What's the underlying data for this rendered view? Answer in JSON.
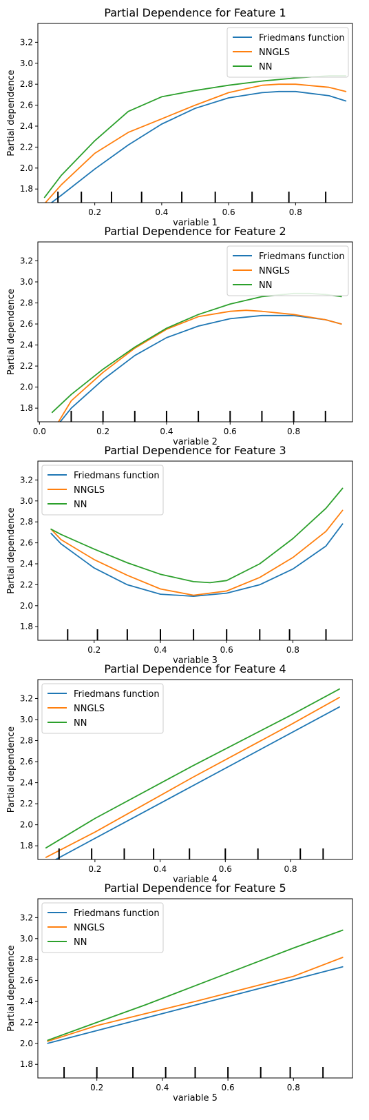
{
  "figure": {
    "background": "#ffffff",
    "axis_color": "#000000"
  },
  "colors": {
    "friedman": "#1f77b4",
    "nngls": "#ff7f0e",
    "nn": "#2ca02c"
  },
  "chart_data": [
    {
      "type": "line",
      "title": "Partial Dependence for Feature 1",
      "xlabel": "variable 1",
      "ylabel": "Partial dependence",
      "xlim": [
        0.03,
        0.97
      ],
      "ylim": [
        1.67,
        3.38
      ],
      "xticks": [
        0.2,
        0.4,
        0.6,
        0.8
      ],
      "xtick_labels": [
        "0.2",
        "0.4",
        "0.6",
        "0.8"
      ],
      "yticks": [
        1.8,
        2.0,
        2.2,
        2.4,
        2.6,
        2.8,
        3.0,
        3.2
      ],
      "ytick_labels": [
        "1.8",
        "2.0",
        "2.2",
        "2.4",
        "2.6",
        "2.8",
        "3.0",
        "3.2"
      ],
      "legend": {
        "position": "top-right",
        "entries": [
          "Friedmans function",
          "NNGLS",
          "NN"
        ]
      },
      "grid": false,
      "deciles": [
        0.09,
        0.16,
        0.25,
        0.34,
        0.46,
        0.56,
        0.67,
        0.78,
        0.89
      ],
      "series": [
        {
          "name": "Friedmans function",
          "color": "#1f77b4",
          "x": [
            0.05,
            0.1,
            0.2,
            0.3,
            0.4,
            0.5,
            0.6,
            0.7,
            0.75,
            0.8,
            0.9,
            0.95
          ],
          "y": [
            1.62,
            1.74,
            1.99,
            2.22,
            2.42,
            2.57,
            2.67,
            2.72,
            2.73,
            2.73,
            2.69,
            2.64
          ]
        },
        {
          "name": "NNGLS",
          "color": "#ff7f0e",
          "x": [
            0.05,
            0.1,
            0.2,
            0.3,
            0.4,
            0.5,
            0.6,
            0.7,
            0.75,
            0.8,
            0.9,
            0.95
          ],
          "y": [
            1.66,
            1.84,
            2.14,
            2.34,
            2.47,
            2.6,
            2.72,
            2.79,
            2.8,
            2.8,
            2.77,
            2.73
          ]
        },
        {
          "name": "NN",
          "color": "#2ca02c",
          "x": [
            0.05,
            0.1,
            0.2,
            0.3,
            0.4,
            0.5,
            0.6,
            0.7,
            0.8,
            0.9,
            0.95
          ],
          "y": [
            1.72,
            1.93,
            2.26,
            2.54,
            2.68,
            2.74,
            2.79,
            2.83,
            2.86,
            2.88,
            2.88
          ]
        }
      ]
    },
    {
      "type": "line",
      "title": "Partial Dependence for Feature 2",
      "xlabel": "variable 2",
      "ylabel": "Partial dependence",
      "xlim": [
        -0.005,
        0.985
      ],
      "ylim": [
        1.67,
        3.38
      ],
      "xticks": [
        0.0,
        0.2,
        0.4,
        0.6,
        0.8
      ],
      "xtick_labels": [
        "0.0",
        "0.2",
        "0.4",
        "0.6",
        "0.8"
      ],
      "yticks": [
        1.8,
        2.0,
        2.2,
        2.4,
        2.6,
        2.8,
        3.0,
        3.2
      ],
      "ytick_labels": [
        "1.8",
        "2.0",
        "2.2",
        "2.4",
        "2.6",
        "2.8",
        "3.0",
        "3.2"
      ],
      "legend": {
        "position": "top-right",
        "entries": [
          "Friedmans function",
          "NNGLS",
          "NN"
        ]
      },
      "grid": false,
      "deciles": [
        0.1,
        0.2,
        0.3,
        0.4,
        0.5,
        0.6,
        0.7,
        0.8,
        0.9
      ],
      "series": [
        {
          "name": "Friedmans function",
          "color": "#1f77b4",
          "x": [
            0.06,
            0.1,
            0.2,
            0.3,
            0.4,
            0.5,
            0.6,
            0.7,
            0.75,
            0.8,
            0.9,
            0.95
          ],
          "y": [
            1.65,
            1.8,
            2.07,
            2.3,
            2.47,
            2.58,
            2.65,
            2.68,
            2.68,
            2.68,
            2.64,
            2.6
          ]
        },
        {
          "name": "NNGLS",
          "color": "#ff7f0e",
          "x": [
            0.05,
            0.1,
            0.2,
            0.3,
            0.4,
            0.5,
            0.6,
            0.65,
            0.7,
            0.8,
            0.9,
            0.95
          ],
          "y": [
            1.62,
            1.87,
            2.14,
            2.37,
            2.55,
            2.67,
            2.72,
            2.73,
            2.72,
            2.69,
            2.64,
            2.6
          ]
        },
        {
          "name": "NN",
          "color": "#2ca02c",
          "x": [
            0.04,
            0.1,
            0.2,
            0.3,
            0.4,
            0.5,
            0.6,
            0.7,
            0.8,
            0.85,
            0.9,
            0.95
          ],
          "y": [
            1.76,
            1.93,
            2.17,
            2.38,
            2.56,
            2.69,
            2.79,
            2.86,
            2.89,
            2.89,
            2.88,
            2.86
          ]
        }
      ]
    },
    {
      "type": "line",
      "title": "Partial Dependence for Feature 3",
      "xlabel": "variable 3",
      "ylabel": "Partial dependence",
      "xlim": [
        0.03,
        0.98
      ],
      "ylim": [
        1.67,
        3.38
      ],
      "xticks": [
        0.2,
        0.4,
        0.6,
        0.8
      ],
      "xtick_labels": [
        "0.2",
        "0.4",
        "0.6",
        "0.8"
      ],
      "yticks": [
        1.8,
        2.0,
        2.2,
        2.4,
        2.6,
        2.8,
        3.0,
        3.2
      ],
      "ytick_labels": [
        "1.8",
        "2.0",
        "2.2",
        "2.4",
        "2.6",
        "2.8",
        "3.0",
        "3.2"
      ],
      "legend": {
        "position": "top-left",
        "entries": [
          "Friedmans function",
          "NNGLS",
          "NN"
        ]
      },
      "grid": false,
      "deciles": [
        0.12,
        0.21,
        0.3,
        0.4,
        0.5,
        0.6,
        0.7,
        0.79,
        0.9
      ],
      "series": [
        {
          "name": "Friedmans function",
          "color": "#1f77b4",
          "x": [
            0.07,
            0.1,
            0.2,
            0.3,
            0.4,
            0.5,
            0.6,
            0.7,
            0.8,
            0.9,
            0.95
          ],
          "y": [
            2.69,
            2.59,
            2.36,
            2.2,
            2.11,
            2.09,
            2.12,
            2.2,
            2.35,
            2.57,
            2.78
          ]
        },
        {
          "name": "NNGLS",
          "color": "#ff7f0e",
          "x": [
            0.07,
            0.1,
            0.2,
            0.3,
            0.4,
            0.5,
            0.6,
            0.7,
            0.8,
            0.9,
            0.95
          ],
          "y": [
            2.73,
            2.63,
            2.44,
            2.29,
            2.16,
            2.1,
            2.14,
            2.27,
            2.46,
            2.71,
            2.91
          ]
        },
        {
          "name": "NN",
          "color": "#2ca02c",
          "x": [
            0.07,
            0.1,
            0.2,
            0.3,
            0.4,
            0.5,
            0.55,
            0.6,
            0.7,
            0.8,
            0.9,
            0.95
          ],
          "y": [
            2.73,
            2.68,
            2.54,
            2.41,
            2.3,
            2.23,
            2.22,
            2.24,
            2.4,
            2.64,
            2.93,
            3.12
          ]
        }
      ]
    },
    {
      "type": "line",
      "title": "Partial Dependence for Feature 4",
      "xlabel": "variable 4",
      "ylabel": "Partial dependence",
      "xlim": [
        0.025,
        0.99
      ],
      "ylim": [
        1.67,
        3.38
      ],
      "xticks": [
        0.2,
        0.4,
        0.6,
        0.8
      ],
      "xtick_labels": [
        "0.2",
        "0.4",
        "0.6",
        "0.8"
      ],
      "yticks": [
        1.8,
        2.0,
        2.2,
        2.4,
        2.6,
        2.8,
        3.0,
        3.2
      ],
      "ytick_labels": [
        "1.8",
        "2.0",
        "2.2",
        "2.4",
        "2.6",
        "2.8",
        "3.0",
        "3.2"
      ],
      "legend": {
        "position": "top-left",
        "entries": [
          "Friedmans function",
          "NNGLS",
          "NN"
        ]
      },
      "grid": false,
      "deciles": [
        0.09,
        0.19,
        0.29,
        0.38,
        0.49,
        0.6,
        0.7,
        0.83,
        0.9
      ],
      "series": [
        {
          "name": "Friedmans function",
          "color": "#1f77b4",
          "x": [
            0.05,
            0.95
          ],
          "y": [
            1.62,
            3.12
          ]
        },
        {
          "name": "NNGLS",
          "color": "#ff7f0e",
          "x": [
            0.05,
            0.2,
            0.5,
            0.8,
            0.95
          ],
          "y": [
            1.69,
            1.93,
            2.45,
            2.95,
            3.21
          ]
        },
        {
          "name": "NN",
          "color": "#2ca02c",
          "x": [
            0.05,
            0.2,
            0.5,
            0.8,
            0.95
          ],
          "y": [
            1.78,
            2.06,
            2.56,
            3.04,
            3.29
          ]
        }
      ]
    },
    {
      "type": "line",
      "title": "Partial Dependence for Feature 5",
      "xlabel": "variable 5",
      "ylabel": "Partial dependence",
      "xlim": [
        0.02,
        0.98
      ],
      "ylim": [
        1.67,
        3.38
      ],
      "xticks": [
        0.2,
        0.4,
        0.6,
        0.8
      ],
      "xtick_labels": [
        "0.2",
        "0.4",
        "0.6",
        "0.8"
      ],
      "yticks": [
        1.8,
        2.0,
        2.2,
        2.4,
        2.6,
        2.8,
        3.0,
        3.2
      ],
      "ytick_labels": [
        "1.8",
        "2.0",
        "2.2",
        "2.4",
        "2.6",
        "2.8",
        "3.0",
        "3.2"
      ],
      "legend": {
        "position": "top-left",
        "entries": [
          "Friedmans function",
          "NNGLS",
          "NN"
        ]
      },
      "grid": false,
      "deciles": [
        0.1,
        0.2,
        0.31,
        0.41,
        0.5,
        0.6,
        0.7,
        0.79,
        0.89
      ],
      "series": [
        {
          "name": "Friedmans function",
          "color": "#1f77b4",
          "x": [
            0.05,
            0.95
          ],
          "y": [
            2.0,
            2.73
          ]
        },
        {
          "name": "NNGLS",
          "color": "#ff7f0e",
          "x": [
            0.05,
            0.2,
            0.5,
            0.8,
            0.95
          ],
          "y": [
            2.02,
            2.17,
            2.4,
            2.64,
            2.82
          ]
        },
        {
          "name": "NN",
          "color": "#2ca02c",
          "x": [
            0.05,
            0.2,
            0.35,
            0.5,
            0.65,
            0.8,
            0.95
          ],
          "y": [
            2.03,
            2.2,
            2.37,
            2.55,
            2.73,
            2.91,
            3.08
          ]
        }
      ]
    }
  ]
}
